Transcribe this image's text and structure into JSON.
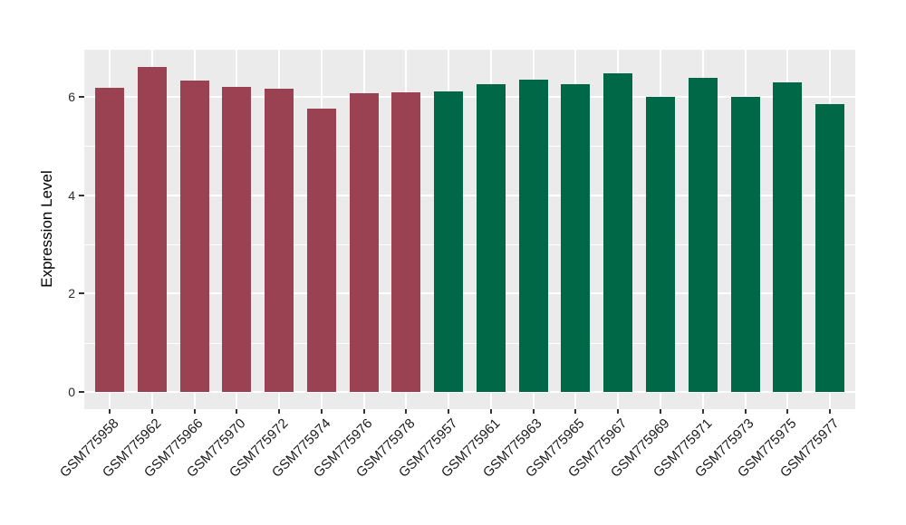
{
  "chart": {
    "panel_bg": "#EBEBEB",
    "grid_color": "#FFFFFF",
    "tick_color": "#333333",
    "label_color": "#1a1a1a"
  },
  "chart_data": {
    "type": "bar",
    "title": "",
    "xlabel": "",
    "ylabel": "Expression Level",
    "ylim": [
      0,
      6.94
    ],
    "yticks": [
      0,
      2,
      4,
      6
    ],
    "yticks_minor": [
      1,
      3,
      5
    ],
    "grid": "on",
    "legend": "none",
    "categories": [
      "GSM775958",
      "GSM775962",
      "GSM775966",
      "GSM775970",
      "GSM775972",
      "GSM775974",
      "GSM775976",
      "GSM775978",
      "GSM775957",
      "GSM775961",
      "GSM775963",
      "GSM775965",
      "GSM775967",
      "GSM775969",
      "GSM775971",
      "GSM775973",
      "GSM775975",
      "GSM775977"
    ],
    "values": [
      6.17,
      6.6,
      6.32,
      6.19,
      6.16,
      5.75,
      6.06,
      6.08,
      6.1,
      6.25,
      6.34,
      6.25,
      6.47,
      6.0,
      6.38,
      6.0,
      6.28,
      5.85
    ],
    "groups": [
      "a",
      "a",
      "a",
      "a",
      "a",
      "a",
      "a",
      "a",
      "b",
      "b",
      "b",
      "b",
      "b",
      "b",
      "b",
      "b",
      "b",
      "b"
    ],
    "group_colors": {
      "a": "#9A4152",
      "b": "#016847"
    }
  }
}
